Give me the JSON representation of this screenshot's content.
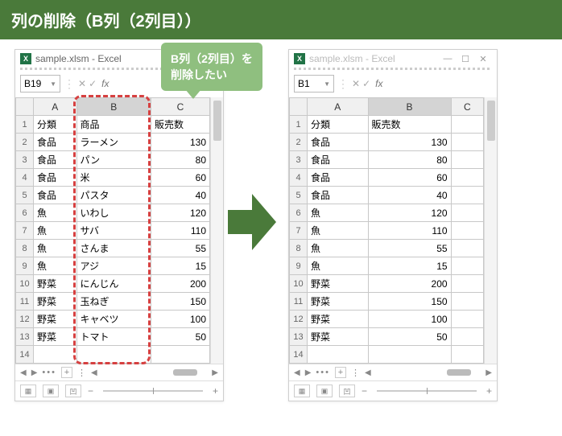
{
  "header": {
    "title": "列の削除（B列（2列目））"
  },
  "callout": {
    "line1": "B列（2列目）を",
    "line2": "削除したい"
  },
  "window": {
    "title": "sample.xlsm - Excel",
    "name_box_left": "B19",
    "name_box_right": "B1",
    "colors": {
      "excel_green": "#217346",
      "header_green": "#4a7a3a"
    }
  },
  "left_grid": {
    "columns": [
      "A",
      "B",
      "C"
    ],
    "selected_col_index": 1,
    "header_row": [
      "分類",
      "商品",
      "販売数"
    ],
    "rows": [
      [
        "食品",
        "ラーメン",
        "130"
      ],
      [
        "食品",
        "パン",
        "80"
      ],
      [
        "食品",
        "米",
        "60"
      ],
      [
        "食品",
        "パスタ",
        "40"
      ],
      [
        "魚",
        "いわし",
        "120"
      ],
      [
        "魚",
        "サバ",
        "110"
      ],
      [
        "魚",
        "さんま",
        "55"
      ],
      [
        "魚",
        "アジ",
        "15"
      ],
      [
        "野菜",
        "にんじん",
        "200"
      ],
      [
        "野菜",
        "玉ねぎ",
        "150"
      ],
      [
        "野菜",
        "キャベツ",
        "100"
      ],
      [
        "野菜",
        "トマト",
        "50"
      ]
    ],
    "empty_rows": 1
  },
  "right_grid": {
    "columns": [
      "A",
      "B",
      "C"
    ],
    "selected_col_index": 1,
    "header_row": [
      "分類",
      "販売数",
      ""
    ],
    "rows": [
      [
        "食品",
        "130",
        ""
      ],
      [
        "食品",
        "80",
        ""
      ],
      [
        "食品",
        "60",
        ""
      ],
      [
        "食品",
        "40",
        ""
      ],
      [
        "魚",
        "120",
        ""
      ],
      [
        "魚",
        "110",
        ""
      ],
      [
        "魚",
        "55",
        ""
      ],
      [
        "魚",
        "15",
        ""
      ],
      [
        "野菜",
        "200",
        ""
      ],
      [
        "野菜",
        "150",
        ""
      ],
      [
        "野菜",
        "100",
        ""
      ],
      [
        "野菜",
        "50",
        ""
      ]
    ],
    "num_col_index": 1,
    "empty_rows": 1
  }
}
